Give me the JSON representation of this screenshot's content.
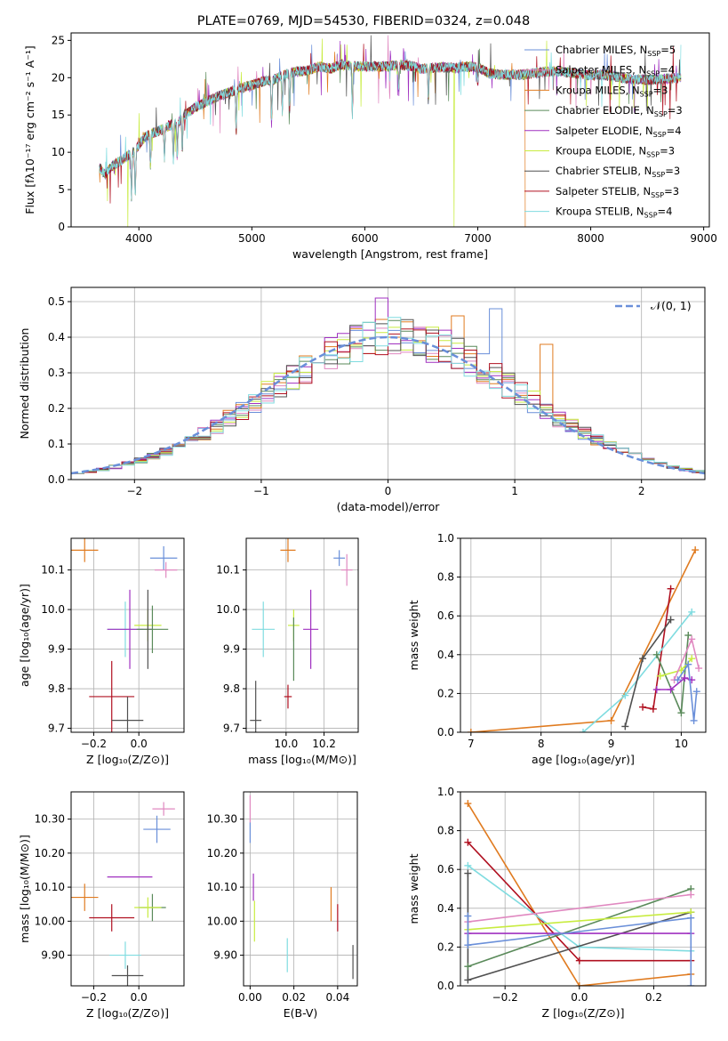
{
  "colors": {
    "Chabrier MILES": "#6a8fd9",
    "Salpeter MILES": "#e088c0",
    "Kroupa MILES": "#e07b20",
    "Chabrier ELODIE": "#5a8a5a",
    "Salpeter ELODIE": "#a030c0",
    "Kroupa ELODIE": "#c8ec40",
    "Chabrier STELIB": "#505050",
    "Salpeter STELIB": "#b01020",
    "Kroupa STELIB": "#80dce0",
    "normal": "#6a8fd9"
  },
  "chart_data": [
    {
      "id": "spectrum",
      "type": "line",
      "title": "PLATE=0769, MJD=54530, FIBERID=0324, z=0.048",
      "xlabel": "wavelength [Angstrom, rest frame]",
      "ylabel": "Flux [fλ10⁻¹⁷ erg cm⁻² s⁻¹ A⁻¹]",
      "xlim": [
        3400,
        9050
      ],
      "ylim": [
        0,
        26
      ],
      "xticks": [
        4000,
        5000,
        6000,
        7000,
        8000,
        9000
      ],
      "yticks": [
        0,
        5,
        10,
        15,
        20,
        25
      ],
      "grid": false,
      "legend_position": "right",
      "legend": [
        {
          "model": "Chabrier MILES",
          "text": "Chabrier MILES, N",
          "sub": "SSP",
          "n": "=5"
        },
        {
          "model": "Salpeter MILES",
          "text": "Salpeter MILES, N",
          "sub": "SSP",
          "n": "=4"
        },
        {
          "model": "Kroupa MILES",
          "text": "Kroupa MILES, N",
          "sub": "SSP",
          "n": "=3"
        },
        {
          "model": "Chabrier ELODIE",
          "text": "Chabrier ELODIE, N",
          "sub": "SSP",
          "n": "=3"
        },
        {
          "model": "Salpeter ELODIE",
          "text": "Salpeter ELODIE, N",
          "sub": "SSP",
          "n": "=4"
        },
        {
          "model": "Kroupa ELODIE",
          "text": "Kroupa ELODIE, N",
          "sub": "SSP",
          "n": "=3"
        },
        {
          "model": "Chabrier STELIB",
          "text": "Chabrier STELIB, N",
          "sub": "SSP",
          "n": "=3"
        },
        {
          "model": "Salpeter STELIB",
          "text": "Salpeter STELIB, N",
          "sub": "SSP",
          "n": "=3"
        },
        {
          "model": "Kroupa STELIB",
          "text": "Kroupa STELIB, N",
          "sub": "SSP",
          "n": "=4"
        }
      ],
      "continuum": [
        [
          3650,
          8
        ],
        [
          3700,
          7
        ],
        [
          3750,
          8
        ],
        [
          3800,
          8.5
        ],
        [
          3850,
          9
        ],
        [
          3900,
          9.5
        ],
        [
          3950,
          10
        ],
        [
          4000,
          11
        ],
        [
          4050,
          12
        ],
        [
          4100,
          12.5
        ],
        [
          4150,
          12.7
        ],
        [
          4200,
          13
        ],
        [
          4250,
          13.5
        ],
        [
          4300,
          13.7
        ],
        [
          4350,
          14
        ],
        [
          4400,
          15
        ],
        [
          4450,
          15.5
        ],
        [
          4500,
          16
        ],
        [
          4600,
          16.8
        ],
        [
          4700,
          17.5
        ],
        [
          4800,
          18
        ],
        [
          4900,
          18.6
        ],
        [
          5000,
          19
        ],
        [
          5100,
          19.5
        ],
        [
          5200,
          19.8
        ],
        [
          5300,
          20.5
        ],
        [
          5400,
          20.8
        ],
        [
          5500,
          21
        ],
        [
          5600,
          21.5
        ],
        [
          5700,
          21.2
        ],
        [
          5800,
          21.8
        ],
        [
          5900,
          21.5
        ],
        [
          6000,
          21.5
        ],
        [
          6100,
          21.5
        ],
        [
          6200,
          21.5
        ],
        [
          6300,
          21.7
        ],
        [
          6400,
          21.6
        ],
        [
          6500,
          21.2
        ],
        [
          6600,
          21.3
        ],
        [
          6700,
          21.4
        ],
        [
          6800,
          21.3
        ],
        [
          6900,
          21.5
        ],
        [
          7000,
          21.4
        ],
        [
          7100,
          20.6
        ],
        [
          7200,
          20.4
        ],
        [
          7300,
          20.4
        ],
        [
          7400,
          20.4
        ],
        [
          7500,
          20.6
        ],
        [
          7600,
          20.8
        ],
        [
          7700,
          20.8
        ],
        [
          7800,
          20.7
        ],
        [
          7900,
          20.5
        ],
        [
          8000,
          20.3
        ],
        [
          8100,
          20.4
        ],
        [
          8200,
          20.2
        ],
        [
          8300,
          19.9
        ],
        [
          8400,
          19.8
        ],
        [
          8500,
          19.7
        ],
        [
          8600,
          19.8
        ],
        [
          8700,
          19.9
        ],
        [
          8800,
          20
        ]
      ],
      "absorption": [
        [
          3934,
          0.6
        ],
        [
          3968,
          0.6
        ],
        [
          4102,
          0.35
        ],
        [
          4226,
          0.3
        ],
        [
          4305,
          0.35
        ],
        [
          4340,
          0.35
        ],
        [
          4384,
          0.3
        ],
        [
          4861,
          0.3
        ],
        [
          5175,
          0.3
        ],
        [
          5270,
          0.25
        ],
        [
          5335,
          0.25
        ],
        [
          5890,
          0.3
        ],
        [
          6300,
          0.15
        ],
        [
          6563,
          0.2
        ],
        [
          7000,
          0.1
        ]
      ],
      "dropouts": [
        {
          "model": "Kroupa ELODIE",
          "x": 3900,
          "y": 0
        },
        {
          "model": "Kroupa ELODIE",
          "x": 6790,
          "y": 0
        },
        {
          "model": "Kroupa MILES",
          "x": 7420,
          "y": 0
        }
      ]
    },
    {
      "id": "residuals",
      "type": "step-histogram",
      "xlabel": "(data-model)/error",
      "ylabel": "Normed distribution",
      "xlim": [
        -2.5,
        2.5
      ],
      "ylim": [
        0,
        0.54
      ],
      "xticks": [
        -2,
        -1,
        0,
        1,
        2
      ],
      "yticks": [
        0.0,
        0.1,
        0.2,
        0.3,
        0.4,
        0.5
      ],
      "grid": true,
      "legend_position": "top-right",
      "normal_label": "𝒩(0, 1)",
      "bin_width": 0.1,
      "bin_start": -2.5,
      "amplitude": 0.4,
      "peak_bins": [
        {
          "model": "Salpeter ELODIE",
          "bin": 24,
          "value": 0.51
        },
        {
          "model": "Kroupa MILES",
          "bin": 30,
          "value": 0.46
        },
        {
          "model": "Chabrier MILES",
          "bin": 33,
          "value": 0.48
        },
        {
          "model": "Kroupa MILES",
          "bin": 37,
          "value": 0.38
        }
      ]
    },
    {
      "id": "age-vs-z",
      "type": "errorbar",
      "xlabel": "Z [log₁₀(Z/Z⊙)]",
      "ylabel": "age  [log₁₀(age/yr)]",
      "xlim": [
        -0.3,
        0.2
      ],
      "ylim": [
        9.69,
        10.18
      ],
      "xticks": [
        -0.2,
        0.0
      ],
      "yticks": [
        9.7,
        9.8,
        9.9,
        10.0,
        10.1
      ],
      "grid": true,
      "points": [
        {
          "model": "Kroupa MILES",
          "x": -0.24,
          "y": 10.15,
          "dx": 0.06,
          "dy": 0.03
        },
        {
          "model": "Chabrier MILES",
          "x": 0.11,
          "y": 10.13,
          "dx": 0.06,
          "dy": 0.03
        },
        {
          "model": "Salpeter MILES",
          "x": 0.12,
          "y": 10.1,
          "dx": 0.05,
          "dy": 0.02
        },
        {
          "model": "Kroupa STELIB",
          "x": -0.06,
          "y": 9.95,
          "dx": 0.08,
          "dy": 0.07
        },
        {
          "model": "Kroupa ELODIE",
          "x": 0.04,
          "y": 9.96,
          "dx": 0.06,
          "dy": 0.04
        },
        {
          "model": "Salpeter ELODIE",
          "x": -0.04,
          "y": 9.95,
          "dx": 0.1,
          "dy": 0.1
        },
        {
          "model": "Chabrier ELODIE",
          "x": 0.06,
          "y": 9.95,
          "dx": 0.07,
          "dy": 0.06
        },
        {
          "model": "Salpeter STELIB",
          "x": -0.12,
          "y": 9.78,
          "dx": 0.1,
          "dy": 0.09
        },
        {
          "model": "Chabrier STELIB",
          "x": 0.04,
          "y": 9.95,
          "dx": 0.0,
          "dy": 0.1
        },
        {
          "model": "Chabrier STELIB",
          "x": -0.05,
          "y": 9.72,
          "dx": 0.07,
          "dy": 0.06
        }
      ]
    },
    {
      "id": "age-vs-mass",
      "type": "errorbar",
      "xlabel": "mass [log₁₀(M/M⊙)]",
      "ylabel": "",
      "xlim": [
        9.79,
        10.38
      ],
      "ylim": [
        9.69,
        10.18
      ],
      "xticks": [
        10.0,
        10.2
      ],
      "yticks": [
        9.7,
        9.8,
        9.9,
        10.0,
        10.1
      ],
      "grid": true,
      "points": [
        {
          "model": "Kroupa MILES",
          "x": 10.01,
          "y": 10.15,
          "dx": 0.04,
          "dy": 0.03
        },
        {
          "model": "Chabrier MILES",
          "x": 10.28,
          "y": 10.13,
          "dx": 0.03,
          "dy": 0.02
        },
        {
          "model": "Salpeter MILES",
          "x": 10.32,
          "y": 10.1,
          "dx": 0.03,
          "dy": 0.04
        },
        {
          "model": "Kroupa STELIB",
          "x": 9.88,
          "y": 9.95,
          "dx": 0.06,
          "dy": 0.07
        },
        {
          "model": "Kroupa ELODIE",
          "x": 10.04,
          "y": 9.96,
          "dx": 0.03,
          "dy": 0.04
        },
        {
          "model": "Salpeter ELODIE",
          "x": 10.13,
          "y": 9.95,
          "dx": 0.04,
          "dy": 0.1
        },
        {
          "model": "Chabrier ELODIE",
          "x": 10.04,
          "y": 9.9,
          "dx": 0.0,
          "dy": 0.08
        },
        {
          "model": "Salpeter STELIB",
          "x": 10.01,
          "y": 9.78,
          "dx": 0.02,
          "dy": 0.03
        },
        {
          "model": "Chabrier STELIB",
          "x": 9.84,
          "y": 9.72,
          "dx": 0.03,
          "dy": 0.1
        }
      ]
    },
    {
      "id": "weight-vs-age",
      "type": "line",
      "xlabel": "age  [log₁₀(age/yr)]",
      "ylabel": "mass weight",
      "xlim": [
        6.85,
        10.35
      ],
      "ylim": [
        0,
        1
      ],
      "xticks": [
        7,
        8,
        9,
        10
      ],
      "yticks": [
        0.0,
        0.2,
        0.4,
        0.6,
        0.8,
        1.0
      ],
      "grid": true,
      "series": [
        {
          "model": "Kroupa MILES",
          "x": [
            7.0,
            9.0,
            10.2
          ],
          "y": [
            0.0,
            0.06,
            0.94
          ]
        },
        {
          "model": "Salpeter STELIB",
          "x": [
            9.45,
            9.6,
            9.85
          ],
          "y": [
            0.13,
            0.12,
            0.74
          ]
        },
        {
          "model": "Kroupa STELIB",
          "x": [
            8.6,
            9.2,
            10.15
          ],
          "y": [
            0.0,
            0.19,
            0.62
          ]
        },
        {
          "model": "Chabrier STELIB",
          "x": [
            9.2,
            9.45,
            9.85
          ],
          "y": [
            0.03,
            0.38,
            0.58
          ]
        },
        {
          "model": "Chabrier ELODIE",
          "x": [
            9.65,
            10.0,
            10.1
          ],
          "y": [
            0.4,
            0.1,
            0.5
          ]
        },
        {
          "model": "Salpeter ELODIE",
          "x": [
            9.65,
            9.85,
            10.05,
            10.15
          ],
          "y": [
            0.22,
            0.22,
            0.28,
            0.27
          ]
        },
        {
          "model": "Kroupa ELODIE",
          "x": [
            9.7,
            10.0,
            10.15
          ],
          "y": [
            0.29,
            0.32,
            0.38
          ]
        },
        {
          "model": "Salpeter MILES",
          "x": [
            9.9,
            10.15,
            10.25
          ],
          "y": [
            0.27,
            0.48,
            0.33
          ]
        },
        {
          "model": "Chabrier MILES",
          "x": [
            9.95,
            10.1,
            10.18,
            10.22
          ],
          "y": [
            0.27,
            0.35,
            0.06,
            0.21
          ]
        }
      ]
    },
    {
      "id": "mass-vs-z",
      "type": "errorbar",
      "xlabel": "Z [log₁₀(Z/Z⊙)]",
      "ylabel": "mass [log₁₀(M/M⊙)]",
      "xlim": [
        -0.3,
        0.2
      ],
      "ylim": [
        9.81,
        10.38
      ],
      "xticks": [
        -0.2,
        0.0
      ],
      "yticks": [
        9.9,
        10.0,
        10.1,
        10.2,
        10.3
      ],
      "grid": true,
      "points": [
        {
          "model": "Salpeter MILES",
          "x": 0.11,
          "y": 10.33,
          "dx": 0.05,
          "dy": 0.02
        },
        {
          "model": "Chabrier MILES",
          "x": 0.08,
          "y": 10.27,
          "dx": 0.06,
          "dy": 0.04
        },
        {
          "model": "Salpeter ELODIE",
          "x": -0.04,
          "y": 10.13,
          "dx": 0.1,
          "dy": 0.0
        },
        {
          "model": "Kroupa MILES",
          "x": -0.24,
          "y": 10.07,
          "dx": 0.06,
          "dy": 0.04
        },
        {
          "model": "Chabrier ELODIE",
          "x": 0.06,
          "y": 10.04,
          "dx": 0.06,
          "dy": 0.04
        },
        {
          "model": "Kroupa ELODIE",
          "x": 0.04,
          "y": 10.04,
          "dx": 0.06,
          "dy": 0.03
        },
        {
          "model": "Salpeter STELIB",
          "x": -0.12,
          "y": 10.01,
          "dx": 0.1,
          "dy": 0.04
        },
        {
          "model": "Kroupa STELIB",
          "x": -0.06,
          "y": 9.9,
          "dx": 0.07,
          "dy": 0.04
        },
        {
          "model": "Chabrier STELIB",
          "x": -0.05,
          "y": 9.84,
          "dx": 0.07,
          "dy": 0.03
        }
      ]
    },
    {
      "id": "mass-vs-ebv",
      "type": "errorbar",
      "xlabel": "E(B-V)",
      "ylabel": "",
      "xlim": [
        -0.003,
        0.049
      ],
      "ylim": [
        9.81,
        10.38
      ],
      "xticks": [
        0.0,
        0.02,
        0.04
      ],
      "yticks": [
        9.9,
        10.0,
        10.1,
        10.2,
        10.3
      ],
      "grid": true,
      "points": [
        {
          "model": "Salpeter MILES",
          "x": 0.0,
          "y": 10.33,
          "dx": 0,
          "dy": 0.04
        },
        {
          "model": "Chabrier MILES",
          "x": 0.0,
          "y": 10.26,
          "dx": 0,
          "dy": 0.03
        },
        {
          "model": "Salpeter ELODIE",
          "x": 0.0015,
          "y": 10.1,
          "dx": 0,
          "dy": 0.04
        },
        {
          "model": "Kroupa ELODIE",
          "x": 0.002,
          "y": 10.0,
          "dx": 0,
          "dy": 0.06
        },
        {
          "model": "Kroupa MILES",
          "x": 0.037,
          "y": 10.05,
          "dx": 0,
          "dy": 0.05
        },
        {
          "model": "Salpeter STELIB",
          "x": 0.04,
          "y": 10.01,
          "dx": 0,
          "dy": 0.04
        },
        {
          "model": "Kroupa STELIB",
          "x": 0.017,
          "y": 9.9,
          "dx": 0,
          "dy": 0.05
        },
        {
          "model": "Chabrier STELIB",
          "x": 0.047,
          "y": 9.88,
          "dx": 0,
          "dy": 0.05
        }
      ]
    },
    {
      "id": "weight-vs-z",
      "type": "line",
      "xlabel": "Z [log₁₀(Z/Z⊙)]",
      "ylabel": "mass weight",
      "xlim": [
        -0.32,
        0.34
      ],
      "ylim": [
        0,
        1
      ],
      "xticks": [
        -0.2,
        0.0,
        0.2
      ],
      "yticks": [
        0.0,
        0.2,
        0.4,
        0.6,
        0.8,
        1.0
      ],
      "grid": true,
      "series": [
        {
          "model": "Kroupa MILES",
          "x": [
            -0.3,
            0.0,
            0.3
          ],
          "y": [
            0.94,
            0.0,
            0.06
          ]
        },
        {
          "model": "Salpeter STELIB",
          "x": [
            -0.3,
            0.0,
            0.3
          ],
          "y": [
            0.74,
            0.13,
            0.13
          ]
        },
        {
          "model": "Kroupa STELIB",
          "x": [
            -0.3,
            0.0,
            0.3
          ],
          "y": [
            0.62,
            0.2,
            0.18
          ]
        },
        {
          "model": "Chabrier STELIB",
          "x": [
            -0.3,
            -0.3,
            0.3
          ],
          "y": [
            0.58,
            0.03,
            0.38
          ]
        },
        {
          "model": "Chabrier ELODIE",
          "x": [
            -0.3,
            0.3
          ],
          "y": [
            0.1,
            0.5
          ]
        },
        {
          "model": "Salpeter ELODIE",
          "x": [
            -0.3,
            0.3
          ],
          "y": [
            0.27,
            0.27
          ]
        },
        {
          "model": "Kroupa ELODIE",
          "x": [
            -0.3,
            0.3
          ],
          "y": [
            0.29,
            0.38
          ]
        },
        {
          "model": "Salpeter MILES",
          "x": [
            -0.3,
            0.3
          ],
          "y": [
            0.33,
            0.47
          ]
        },
        {
          "model": "Chabrier MILES",
          "x": [
            -0.3,
            -0.3,
            0.3,
            0.3
          ],
          "y": [
            0.36,
            0.21,
            0.35,
            0.0
          ]
        }
      ]
    }
  ]
}
